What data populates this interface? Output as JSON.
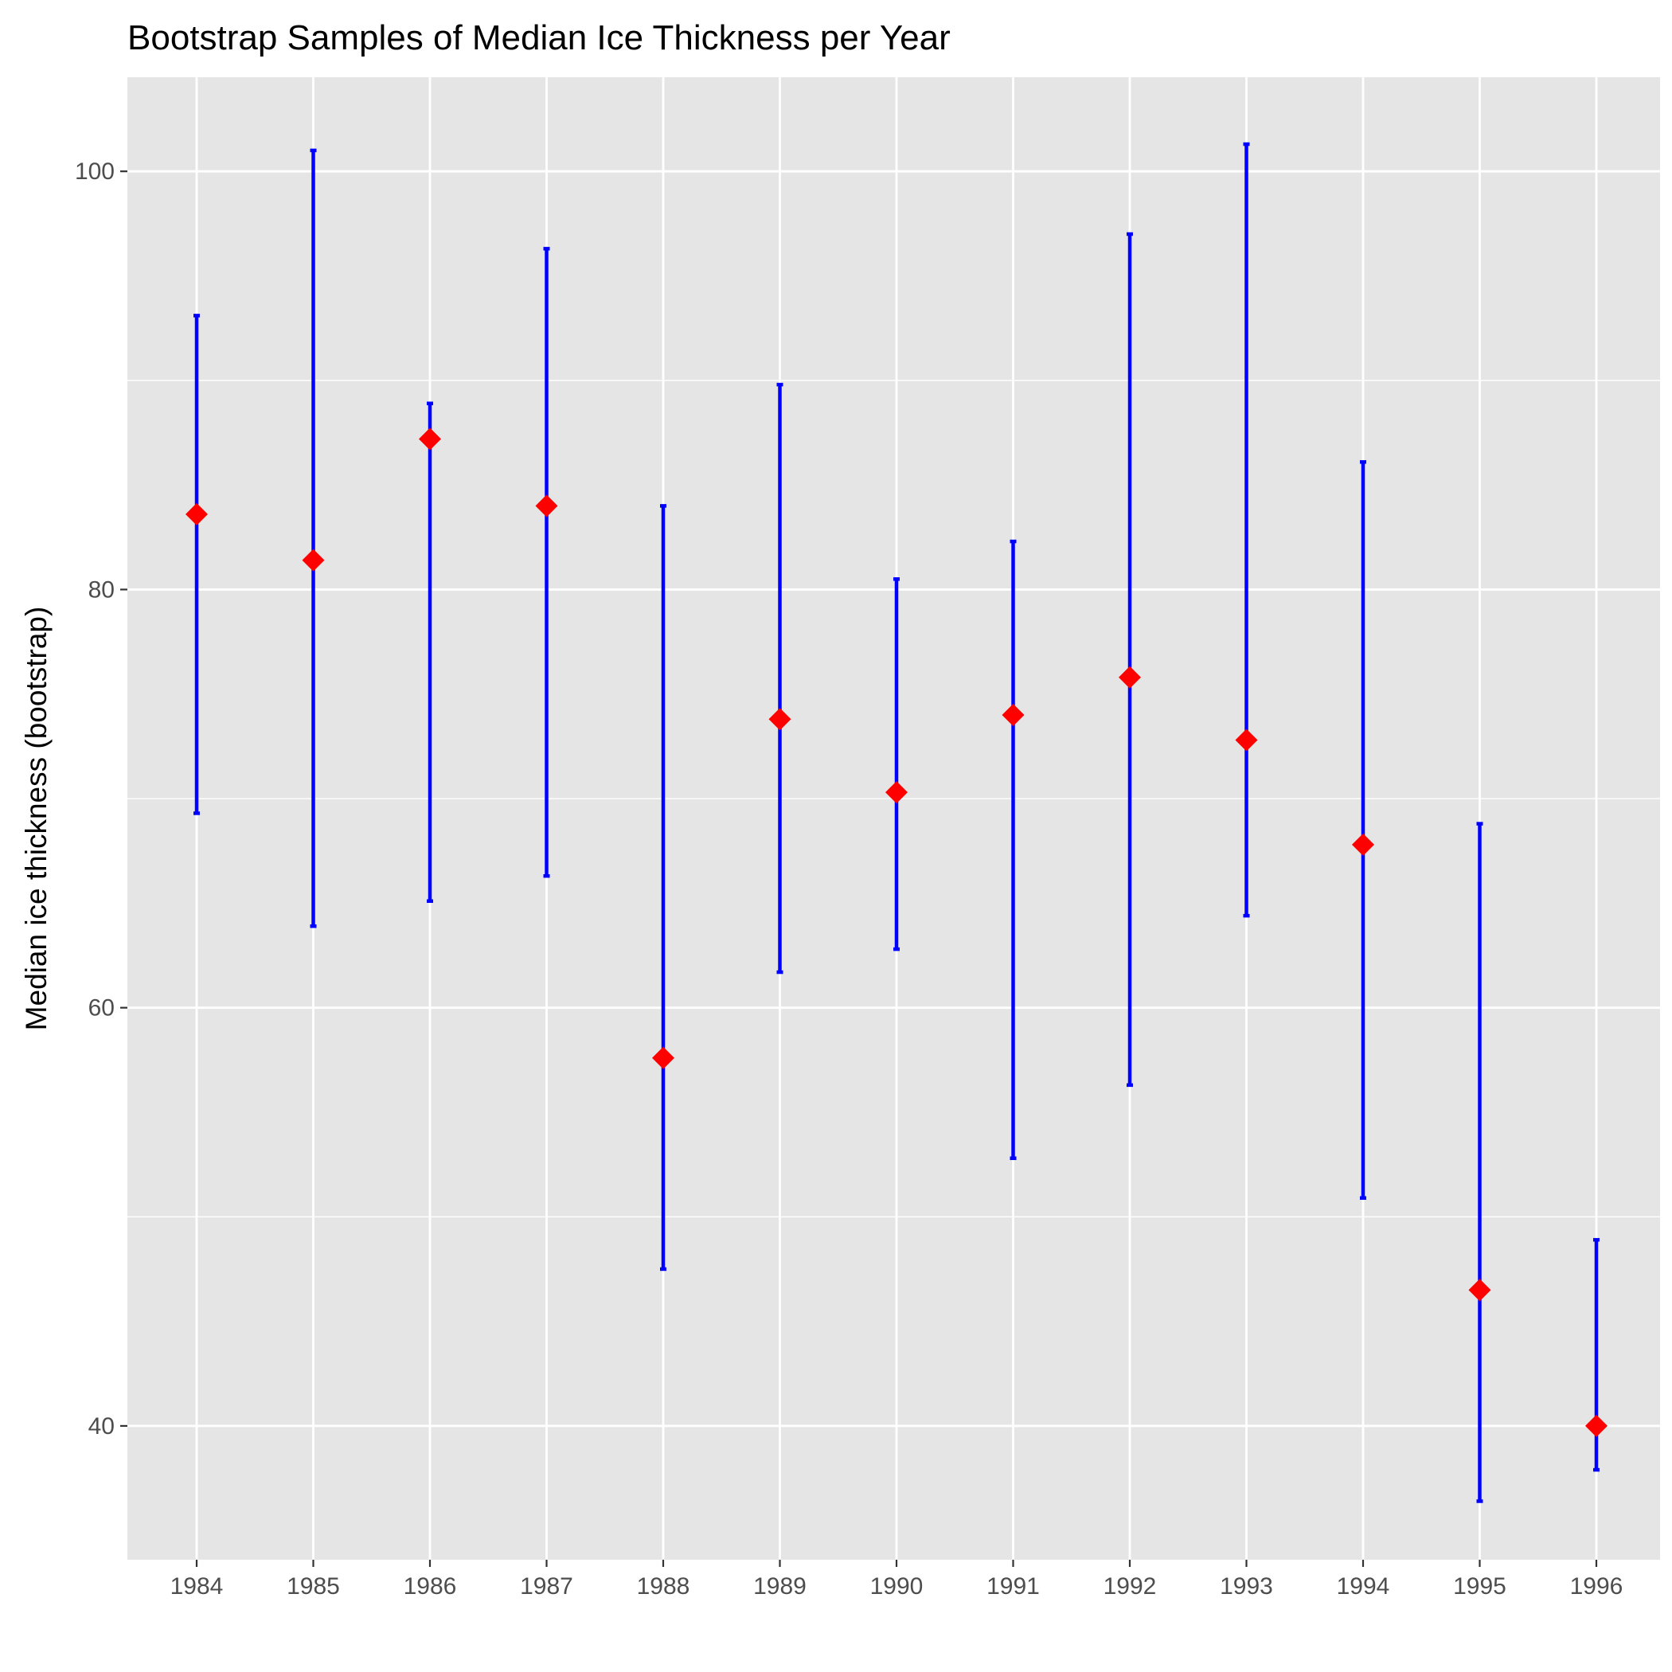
{
  "chart_data": {
    "type": "errorbar",
    "title": "Bootstrap Samples of Median Ice Thickness per Year",
    "xlabel": "",
    "ylabel": "Median ice thickness (bootstrap)",
    "categories": [
      "1984",
      "1985",
      "1986",
      "1987",
      "1988",
      "1989",
      "1990",
      "1991",
      "1992",
      "1993",
      "1994",
      "1995",
      "1996"
    ],
    "medians": [
      83.6,
      81.4,
      87.2,
      84.0,
      57.6,
      73.8,
      70.3,
      74.0,
      75.8,
      72.8,
      67.8,
      46.5,
      40.0
    ],
    "lower": [
      69.3,
      63.9,
      65.1,
      66.3,
      47.5,
      61.7,
      62.8,
      52.8,
      56.3,
      64.4,
      50.9,
      36.4,
      37.9
    ],
    "upper": [
      93.1,
      101.0,
      88.9,
      96.3,
      84.0,
      89.8,
      80.5,
      82.3,
      97.0,
      101.3,
      86.1,
      68.8,
      48.9
    ],
    "ylim": [
      33.6,
      104.5
    ],
    "yticks": [
      40,
      60,
      80,
      100
    ],
    "y_minor_ticks": [
      50,
      70,
      90
    ],
    "grid": true,
    "colors": {
      "panel_background": "#e5e5e5",
      "grid": "#ffffff",
      "error_bar": "#0000ff",
      "point": "#ff0000"
    },
    "point_shape": "diamond"
  }
}
